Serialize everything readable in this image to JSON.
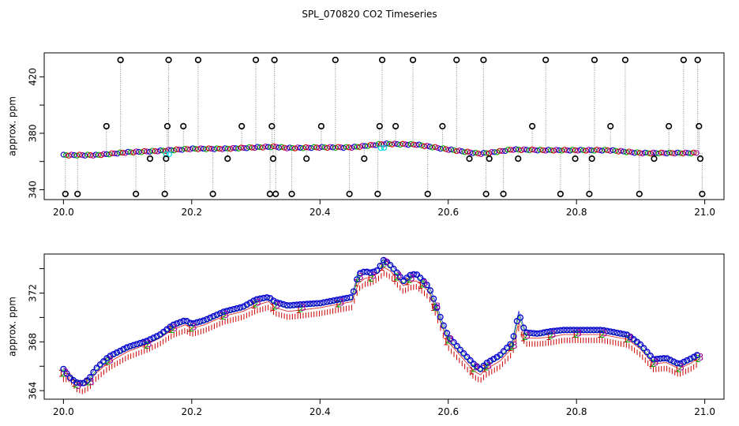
{
  "title": "SPL_070820  CO2 Timeseries",
  "colors": {
    "open_circle": "#000000",
    "spike_line": "#888888",
    "blue_series": "#0000cc",
    "green_series": "#00aa00",
    "red_series": "#cc0000",
    "cyan_series": "#00dddd",
    "purple_series": "#990099"
  },
  "chart_data": [
    {
      "type": "scatter",
      "ylabel": "approx. ppm",
      "xlim": [
        19.97,
        21.03
      ],
      "ylim": [
        333,
        437
      ],
      "x_ticks": [
        20.0,
        20.2,
        20.4,
        20.6,
        20.8,
        21.0
      ],
      "x_tick_labels": [
        "20.0",
        "20.2",
        "20.4",
        "20.6",
        "20.8",
        "21.0"
      ],
      "y_ticks": [
        340,
        380,
        420
      ],
      "y_tick_labels": [
        "340",
        "380",
        "420"
      ],
      "y_mid_ticks": [
        360,
        400
      ],
      "baseline": {
        "x": [
          20.0,
          20.05,
          20.1,
          20.15,
          20.2,
          20.25,
          20.3,
          20.33,
          20.35,
          20.4,
          20.45,
          20.47,
          20.5,
          20.55,
          20.6,
          20.65,
          20.67,
          20.7,
          20.75,
          20.8,
          20.82,
          20.85,
          20.9,
          20.95,
          20.99
        ],
        "y": [
          364.5,
          364.5,
          366.5,
          367.5,
          369,
          369,
          370,
          370.5,
          369.5,
          370,
          370,
          371,
          372.5,
          372,
          368.5,
          365.5,
          366.5,
          368.5,
          368,
          368,
          368,
          368,
          366,
          366,
          366
        ]
      },
      "outliers": [
        {
          "x": 20.003,
          "y": 337
        },
        {
          "x": 20.022,
          "y": 337
        },
        {
          "x": 20.067,
          "y": 385
        },
        {
          "x": 20.089,
          "y": 432
        },
        {
          "x": 20.113,
          "y": 337
        },
        {
          "x": 20.135,
          "y": 362
        },
        {
          "x": 20.158,
          "y": 337
        },
        {
          "x": 20.16,
          "y": 362
        },
        {
          "x": 20.162,
          "y": 385
        },
        {
          "x": 20.164,
          "y": 432
        },
        {
          "x": 20.187,
          "y": 385
        },
        {
          "x": 20.21,
          "y": 432
        },
        {
          "x": 20.233,
          "y": 337
        },
        {
          "x": 20.256,
          "y": 362
        },
        {
          "x": 20.278,
          "y": 385
        },
        {
          "x": 20.3,
          "y": 432
        },
        {
          "x": 20.322,
          "y": 337
        },
        {
          "x": 20.325,
          "y": 385
        },
        {
          "x": 20.327,
          "y": 362
        },
        {
          "x": 20.329,
          "y": 432
        },
        {
          "x": 20.331,
          "y": 337
        },
        {
          "x": 20.356,
          "y": 337
        },
        {
          "x": 20.379,
          "y": 362
        },
        {
          "x": 20.402,
          "y": 385
        },
        {
          "x": 20.424,
          "y": 432
        },
        {
          "x": 20.446,
          "y": 337
        },
        {
          "x": 20.469,
          "y": 362
        },
        {
          "x": 20.49,
          "y": 337
        },
        {
          "x": 20.493,
          "y": 385
        },
        {
          "x": 20.497,
          "y": 432
        },
        {
          "x": 20.518,
          "y": 385
        },
        {
          "x": 20.545,
          "y": 432
        },
        {
          "x": 20.568,
          "y": 337
        },
        {
          "x": 20.591,
          "y": 385
        },
        {
          "x": 20.613,
          "y": 432
        },
        {
          "x": 20.633,
          "y": 362
        },
        {
          "x": 20.655,
          "y": 432
        },
        {
          "x": 20.659,
          "y": 337
        },
        {
          "x": 20.664,
          "y": 362
        },
        {
          "x": 20.686,
          "y": 337
        },
        {
          "x": 20.709,
          "y": 362
        },
        {
          "x": 20.731,
          "y": 385
        },
        {
          "x": 20.752,
          "y": 432
        },
        {
          "x": 20.775,
          "y": 337
        },
        {
          "x": 20.798,
          "y": 362
        },
        {
          "x": 20.82,
          "y": 337
        },
        {
          "x": 20.824,
          "y": 362
        },
        {
          "x": 20.828,
          "y": 432
        },
        {
          "x": 20.853,
          "y": 385
        },
        {
          "x": 20.876,
          "y": 432
        },
        {
          "x": 20.898,
          "y": 337
        },
        {
          "x": 20.921,
          "y": 362
        },
        {
          "x": 20.944,
          "y": 385
        },
        {
          "x": 20.967,
          "y": 432
        },
        {
          "x": 20.989,
          "y": 432
        },
        {
          "x": 20.991,
          "y": 385
        },
        {
          "x": 20.993,
          "y": 362
        },
        {
          "x": 20.996,
          "y": 337
        }
      ]
    },
    {
      "type": "line",
      "ylabel": "approx. ppm",
      "xlim": [
        19.97,
        21.03
      ],
      "ylim": [
        363.3,
        375.2
      ],
      "x_ticks": [
        20.0,
        20.2,
        20.4,
        20.6,
        20.8,
        21.0
      ],
      "x_tick_labels": [
        "20.0",
        "20.2",
        "20.4",
        "20.6",
        "20.8",
        "21.0"
      ],
      "y_ticks": [
        364,
        368,
        372
      ],
      "y_tick_labels": [
        "364",
        "368",
        "372"
      ],
      "y_mid_ticks": [
        366,
        370,
        374
      ],
      "point_labels": [
        "1",
        "2",
        "3"
      ],
      "series_x": [
        20.0,
        20.01,
        20.02,
        20.03,
        20.04,
        20.05,
        20.07,
        20.1,
        20.13,
        20.15,
        20.17,
        20.19,
        20.2,
        20.22,
        20.25,
        20.28,
        20.3,
        20.32,
        20.33,
        20.35,
        20.37,
        20.4,
        20.43,
        20.45,
        20.46,
        20.47,
        20.48,
        20.49,
        20.5,
        20.51,
        20.52,
        20.53,
        20.54,
        20.55,
        20.56,
        20.57,
        20.58,
        20.59,
        20.6,
        20.62,
        20.64,
        20.65,
        20.66,
        20.68,
        20.7,
        20.71,
        20.72,
        20.74,
        20.76,
        20.78,
        20.8,
        20.82,
        20.84,
        20.86,
        20.88,
        20.9,
        20.92,
        20.94,
        20.96,
        20.98,
        20.99
      ],
      "series": [
        {
          "values": [
            365.4,
            365.4,
            364.6,
            364.4,
            364.7,
            365.4,
            366.3,
            367.2,
            367.8,
            368.3,
            369.0,
            369.4,
            369.1,
            369.4,
            370.1,
            370.5,
            371.0,
            371.3,
            370.8,
            370.5,
            370.6,
            370.8,
            371.1,
            371.3,
            372.8,
            373.2,
            373.3,
            373.6,
            374.1,
            373.8,
            373.2,
            372.6,
            372.9,
            373.0,
            372.6,
            372.1,
            370.8,
            369.3,
            368.0,
            366.8,
            365.6,
            365.3,
            365.8,
            366.4,
            367.5,
            369.6,
            368.3,
            368.3,
            368.4,
            368.6,
            368.6,
            368.6,
            368.6,
            368.4,
            368.2,
            367.4,
            366.2,
            366.3,
            365.8,
            366.3,
            366.7
          ]
        },
        {
          "values": [
            365.6,
            365.2,
            364.7,
            364.6,
            364.9,
            365.6,
            366.6,
            367.4,
            367.9,
            368.4,
            369.2,
            369.6,
            369.3,
            369.6,
            370.3,
            370.7,
            371.3,
            371.5,
            371.1,
            370.8,
            370.9,
            371.0,
            371.3,
            371.5,
            373.4,
            373.6,
            373.4,
            373.7,
            374.6,
            374.1,
            373.5,
            372.8,
            373.3,
            373.4,
            372.9,
            372.3,
            371.0,
            369.5,
            368.3,
            367.1,
            366.0,
            365.6,
            366.1,
            366.7,
            367.8,
            370.2,
            368.6,
            368.5,
            368.7,
            368.8,
            368.8,
            368.8,
            368.8,
            368.6,
            368.4,
            367.6,
            366.4,
            366.5,
            366.0,
            366.5,
            366.8
          ]
        },
        {
          "values": [
            365.9,
            365.2,
            364.8,
            364.7,
            365.1,
            365.9,
            366.9,
            367.7,
            368.2,
            368.7,
            369.5,
            369.9,
            369.6,
            369.9,
            370.6,
            371.0,
            371.6,
            371.8,
            371.4,
            371.1,
            371.2,
            371.3,
            371.6,
            371.8,
            373.7,
            373.9,
            373.8,
            374.0,
            374.9,
            374.4,
            373.8,
            373.1,
            373.6,
            373.7,
            373.2,
            372.6,
            371.3,
            369.8,
            368.6,
            367.4,
            366.3,
            365.9,
            366.4,
            367.0,
            368.1,
            370.5,
            368.9,
            368.8,
            369.0,
            369.1,
            369.1,
            369.1,
            369.1,
            368.9,
            368.7,
            367.9,
            366.7,
            366.8,
            366.3,
            366.8,
            367.1
          ]
        }
      ]
    }
  ]
}
